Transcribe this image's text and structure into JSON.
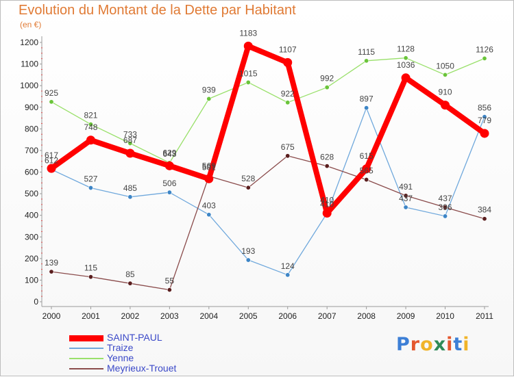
{
  "title": "Evolution du Montant de la Dette par Habitant",
  "subtitle": "(en €)",
  "logo": {
    "text": "Proxiti",
    "letter_colors": [
      "#3d7fd6",
      "#e4572e",
      "#f0b429",
      "#2e8b57",
      "#e4572e",
      "#3d7fd6",
      "#f0b429"
    ]
  },
  "chart_data": {
    "type": "line",
    "title": "Evolution du Montant de la Dette par Habitant",
    "subtitle": "(en €)",
    "x": [
      "2000",
      "2001",
      "2002",
      "2003",
      "2004",
      "2005",
      "2006",
      "2007",
      "2008",
      "2009",
      "2010",
      "2011"
    ],
    "ylim": [
      0,
      1200
    ],
    "yticks": [
      0,
      100,
      200,
      300,
      400,
      500,
      600,
      700,
      800,
      900,
      1000,
      1100,
      1200
    ],
    "grid": false,
    "legend_position": "bottom-left",
    "series": [
      {
        "name": "SAINT-PAUL",
        "color": "#ff0000",
        "point_color": "#ff0000",
        "stroke": 8,
        "values": [
          617,
          748,
          687,
          629,
          569,
          1183,
          1107,
          410,
          615,
          1036,
          910,
          779
        ]
      },
      {
        "name": "Traize",
        "color": "#6fa8dc",
        "point_color": "#3d85c6",
        "stroke": 1.3,
        "values": [
          612,
          527,
          485,
          506,
          403,
          193,
          124,
          410,
          897,
          437,
          396,
          856
        ]
      },
      {
        "name": "Yenne",
        "color": "#99e06a",
        "point_color": "#6ac43a",
        "stroke": 1.3,
        "values": [
          925,
          821,
          733,
          643,
          939,
          1015,
          922,
          992,
          1115,
          1128,
          1050,
          1126
        ]
      },
      {
        "name": "Meyrieux-Trouet",
        "color": "#8a4b4b",
        "point_color": "#5a1e1e",
        "stroke": 1.3,
        "values": [
          139,
          115,
          85,
          55,
          581,
          528,
          675,
          628,
          565,
          491,
          437,
          384
        ]
      }
    ],
    "data_labels": [
      [
        "617",
        "748",
        "687",
        "629",
        "569",
        "1183",
        "1107",
        "410",
        "615",
        "1036",
        "910",
        "779"
      ],
      [
        "612",
        "527",
        "485",
        "506",
        "403",
        "193",
        "124",
        "410",
        "897",
        "437",
        "396",
        "856"
      ],
      [
        "925",
        "821",
        "733",
        "643",
        "939",
        "1015",
        "922",
        "992",
        "1115",
        "1128",
        "1050",
        "1126"
      ],
      [
        "139",
        "115",
        "85",
        "55",
        "581",
        "528",
        "675",
        "628",
        "565",
        "491",
        "437",
        "384"
      ]
    ]
  }
}
